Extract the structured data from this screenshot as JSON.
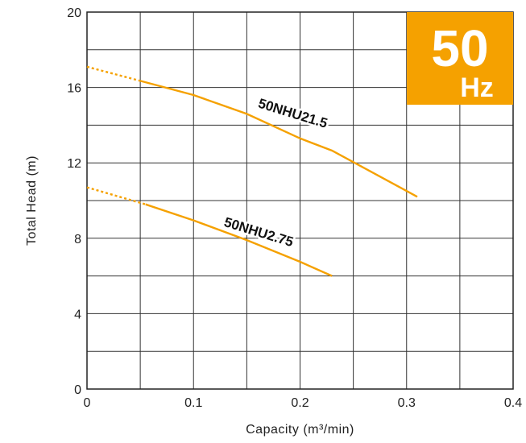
{
  "chart_data": {
    "type": "line",
    "xlabel": "Capacity (m³/min)",
    "ylabel": "Total Head (m)",
    "xlim": [
      0,
      0.4
    ],
    "ylim": [
      0,
      20
    ],
    "x_ticks": [
      "0",
      "0.1",
      "0.2",
      "0.3",
      "0.4"
    ],
    "x_tick_values": [
      0,
      0.1,
      0.2,
      0.3,
      0.4
    ],
    "y_ticks": [
      "0",
      "4",
      "8",
      "12",
      "16",
      "20"
    ],
    "y_tick_values": [
      0,
      4,
      8,
      12,
      16,
      20
    ],
    "grid_x_step": 0.05,
    "grid_y_step": 2,
    "grid": true,
    "series_color": "#F5A100",
    "badge": {
      "value": "50",
      "unit": "Hz",
      "color": "#F5A100"
    },
    "series": [
      {
        "name": "50NHU21.5",
        "dashed_points": [
          [
            0,
            17.1
          ],
          [
            0.05,
            16.35
          ]
        ],
        "solid_points": [
          [
            0.05,
            16.35
          ],
          [
            0.1,
            15.6
          ],
          [
            0.15,
            14.6
          ],
          [
            0.2,
            13.3
          ],
          [
            0.23,
            12.65
          ],
          [
            0.31,
            10.2
          ]
        ],
        "label_at": [
          0.192,
          14.4
        ],
        "label_angle": 17
      },
      {
        "name": "50NHU2.75",
        "dashed_points": [
          [
            0,
            10.7
          ],
          [
            0.055,
            9.8
          ]
        ],
        "solid_points": [
          [
            0.055,
            9.8
          ],
          [
            0.1,
            8.95
          ],
          [
            0.15,
            7.9
          ],
          [
            0.2,
            6.75
          ],
          [
            0.23,
            6.0
          ]
        ],
        "label_at": [
          0.16,
          8.1
        ],
        "label_angle": 17
      }
    ]
  }
}
